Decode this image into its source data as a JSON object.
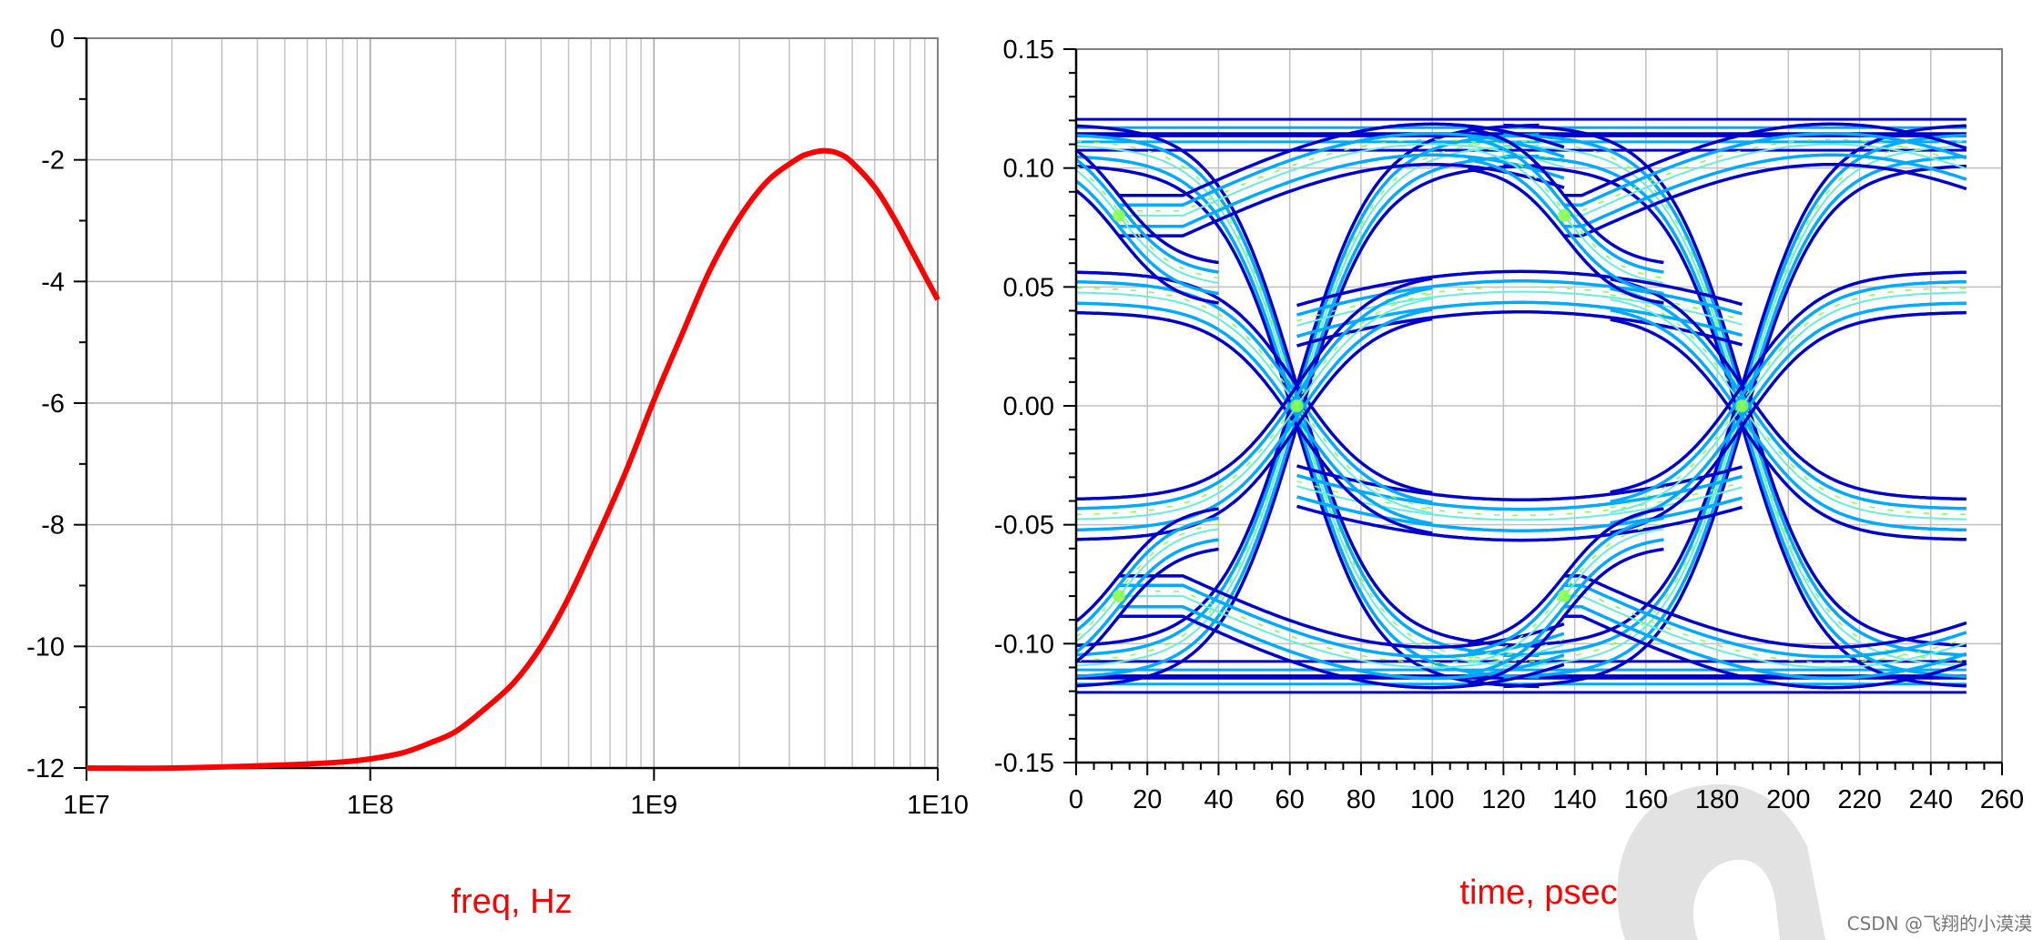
{
  "chart_data": [
    {
      "type": "line",
      "title": "",
      "xlabel": "freq, Hz",
      "ylabel": "",
      "x_scale": "log",
      "xlim": [
        10000000,
        10000000000
      ],
      "ylim": [
        -12,
        0
      ],
      "grid": true,
      "x_ticks": [
        {
          "value": 10000000,
          "label": "1E7"
        },
        {
          "value": 100000000,
          "label": "1E8"
        },
        {
          "value": 1000000000,
          "label": "1E9"
        },
        {
          "value": 10000000000,
          "label": "1E10"
        }
      ],
      "y_ticks": [
        {
          "value": 0,
          "label": "0"
        },
        {
          "value": -2,
          "label": "-2"
        },
        {
          "value": -4,
          "label": "-4"
        },
        {
          "value": -6,
          "label": "-6"
        },
        {
          "value": -8,
          "label": "-8"
        },
        {
          "value": -10,
          "label": "-10"
        },
        {
          "value": -12,
          "label": "-12"
        }
      ],
      "series": [
        {
          "color": "#ff0000",
          "x": [
            10000000,
            20000000,
            50000000,
            80000000,
            100000000,
            130000000,
            160000000,
            200000000,
            250000000,
            320000000,
            400000000,
            500000000,
            630000000,
            800000000,
            1000000000,
            1260000000,
            1580000000,
            2000000000,
            2510000000,
            3160000000,
            3500000000,
            3980000000,
            4500000000,
            5010000000,
            6000000000,
            7000000000,
            8000000000,
            9000000000,
            10000000000
          ],
          "y": [
            -12.0,
            -12.0,
            -11.95,
            -11.9,
            -11.85,
            -11.75,
            -11.6,
            -11.4,
            -11.05,
            -10.6,
            -10.0,
            -9.2,
            -8.2,
            -7.1,
            -5.95,
            -4.85,
            -3.8,
            -2.95,
            -2.35,
            -2.0,
            -1.9,
            -1.85,
            -1.9,
            -2.05,
            -2.45,
            -2.95,
            -3.45,
            -3.9,
            -4.3
          ]
        }
      ]
    },
    {
      "type": "eye-diagram",
      "title": "",
      "xlabel": "time, psec",
      "ylabel": "",
      "xlim": [
        0,
        260
      ],
      "ylim": [
        -0.15,
        0.15
      ],
      "grid": true,
      "data_x_range": [
        0,
        250
      ],
      "bit_period": 125,
      "crossings": [
        12,
        62,
        137,
        187
      ],
      "outer_levels": [
        0.117,
        0.111,
        -0.111,
        -0.117
      ],
      "inner_levels": [
        0.05,
        0.045,
        -0.045,
        -0.05
      ],
      "x_ticks": [
        {
          "value": 0,
          "label": "0"
        },
        {
          "value": 20,
          "label": "20"
        },
        {
          "value": 40,
          "label": "40"
        },
        {
          "value": 60,
          "label": "60"
        },
        {
          "value": 80,
          "label": "80"
        },
        {
          "value": 100,
          "label": "100"
        },
        {
          "value": 120,
          "label": "120"
        },
        {
          "value": 140,
          "label": "140"
        },
        {
          "value": 160,
          "label": "160"
        },
        {
          "value": 180,
          "label": "180"
        },
        {
          "value": 200,
          "label": "200"
        },
        {
          "value": 220,
          "label": "220"
        },
        {
          "value": 240,
          "label": "240"
        },
        {
          "value": 260,
          "label": "260"
        }
      ],
      "y_ticks": [
        {
          "value": 0.15,
          "label": "0.15"
        },
        {
          "value": 0.1,
          "label": "0.10"
        },
        {
          "value": 0.05,
          "label": "0.05"
        },
        {
          "value": 0,
          "label": "0.00"
        },
        {
          "value": -0.05,
          "label": "-0.05"
        },
        {
          "value": -0.1,
          "label": "-0.10"
        },
        {
          "value": -0.15,
          "label": "-0.15"
        }
      ],
      "colors": {
        "outer": "#0000cc",
        "body": "#00aaff",
        "inner": "#66eedd",
        "hot": "#88ff44"
      }
    }
  ],
  "watermark": "CSDN @飞翔的小漠漠"
}
